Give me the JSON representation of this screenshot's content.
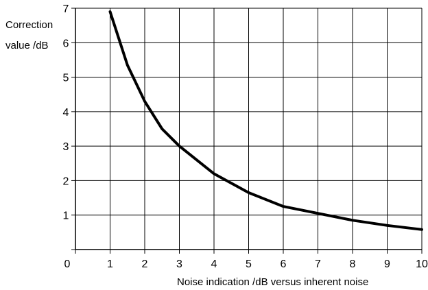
{
  "chart_data": {
    "type": "line",
    "title": "",
    "ylabel_line1": "Correction",
    "ylabel_line2": "value /dB",
    "xlabel": "Noise indication /dB versus inherent noise",
    "xlim": [
      0,
      10
    ],
    "ylim": [
      0,
      7
    ],
    "x_ticks": [
      "0",
      "1",
      "2",
      "3",
      "4",
      "5",
      "6",
      "7",
      "8",
      "9",
      "10"
    ],
    "y_ticks": [
      "1",
      "2",
      "3",
      "4",
      "5",
      "6",
      "7"
    ],
    "grid": true,
    "series": [
      {
        "color": "#000000",
        "x": [
          1,
          1.5,
          2,
          2.5,
          3,
          4,
          5,
          6,
          7,
          8,
          9,
          10
        ],
        "y": [
          6.9,
          5.35,
          4.3,
          3.5,
          3.0,
          2.2,
          1.65,
          1.25,
          1.05,
          0.85,
          0.7,
          0.58
        ]
      }
    ]
  }
}
